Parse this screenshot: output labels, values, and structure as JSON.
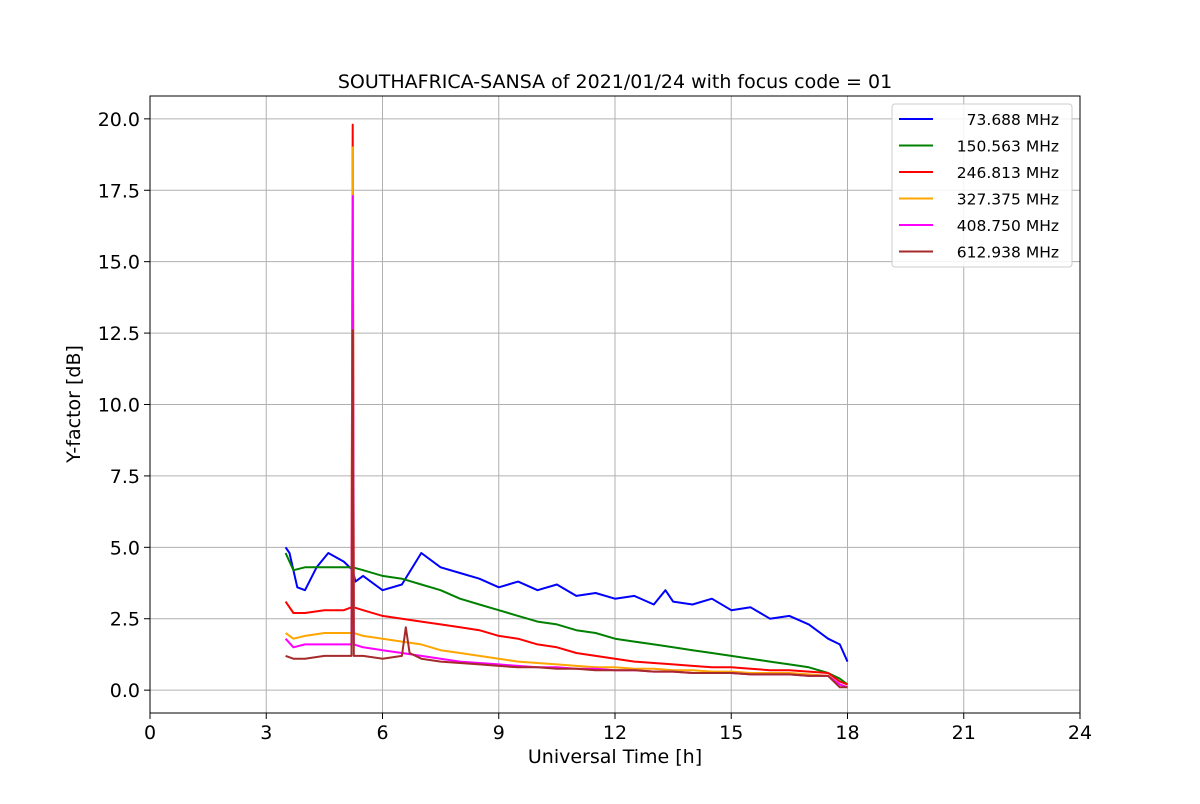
{
  "chart_data": {
    "type": "line",
    "title": "SOUTHAFRICA-SANSA of 2021/01/24 with focus code = 01",
    "xlabel": "Universal Time [h]",
    "ylabel": "Y-factor [dB]",
    "xlim": [
      0,
      24
    ],
    "ylim": [
      -0.8,
      20.8
    ],
    "xticks": [
      0,
      3,
      6,
      9,
      12,
      15,
      18,
      21,
      24
    ],
    "xtick_labels": [
      "0",
      "3",
      "6",
      "9",
      "12",
      "15",
      "18",
      "21",
      "24"
    ],
    "yticks": [
      0,
      2.5,
      5,
      7.5,
      10,
      12.5,
      15,
      17.5,
      20
    ],
    "ytick_labels": [
      "0.0",
      "2.5",
      "5.0",
      "7.5",
      "10.0",
      "12.5",
      "15.0",
      "17.5",
      "20.0"
    ],
    "grid": true,
    "legend_position": "top-right",
    "series": [
      {
        "name": "73.688 MHz",
        "color": "#0000ff",
        "x": [
          3.5,
          3.6,
          3.8,
          4.0,
          4.3,
          4.6,
          5.0,
          5.23,
          5.3,
          5.5,
          6.0,
          6.5,
          7.0,
          7.5,
          8.0,
          8.5,
          9.0,
          9.5,
          10.0,
          10.5,
          11.0,
          11.5,
          12.0,
          12.5,
          13.0,
          13.3,
          13.5,
          14.0,
          14.5,
          15.0,
          15.5,
          16.0,
          16.5,
          17.0,
          17.5,
          17.8,
          18.0
        ],
        "y": [
          5.0,
          4.8,
          3.6,
          3.5,
          4.3,
          4.8,
          4.5,
          4.2,
          3.8,
          4.0,
          3.5,
          3.7,
          4.8,
          4.3,
          4.1,
          3.9,
          3.6,
          3.8,
          3.5,
          3.7,
          3.3,
          3.4,
          3.2,
          3.3,
          3.0,
          3.5,
          3.1,
          3.0,
          3.2,
          2.8,
          2.9,
          2.5,
          2.6,
          2.3,
          1.8,
          1.6,
          1.0
        ]
      },
      {
        "name": "150.563 MHz",
        "color": "#008000",
        "x": [
          3.5,
          3.7,
          4.0,
          4.5,
          5.0,
          5.23,
          5.5,
          6.0,
          6.5,
          7.0,
          7.5,
          8.0,
          8.5,
          9.0,
          9.5,
          10.0,
          10.5,
          11.0,
          11.5,
          12.0,
          12.5,
          13.0,
          13.5,
          14.0,
          14.5,
          15.0,
          15.5,
          16.0,
          16.5,
          17.0,
          17.5,
          17.8,
          18.0
        ],
        "y": [
          4.8,
          4.2,
          4.3,
          4.3,
          4.3,
          4.3,
          4.2,
          4.0,
          3.9,
          3.7,
          3.5,
          3.2,
          3.0,
          2.8,
          2.6,
          2.4,
          2.3,
          2.1,
          2.0,
          1.8,
          1.7,
          1.6,
          1.5,
          1.4,
          1.3,
          1.2,
          1.1,
          1.0,
          0.9,
          0.8,
          0.6,
          0.4,
          0.2
        ]
      },
      {
        "name": "246.813 MHz",
        "color": "#ff0000",
        "x": [
          3.5,
          3.7,
          4.0,
          4.5,
          5.0,
          5.2,
          5.23,
          5.26,
          5.5,
          6.0,
          6.5,
          7.0,
          7.5,
          8.0,
          8.5,
          9.0,
          9.5,
          10.0,
          10.5,
          11.0,
          11.5,
          12.0,
          12.5,
          13.0,
          13.5,
          14.0,
          14.5,
          15.0,
          15.5,
          16.0,
          16.5,
          17.0,
          17.5,
          17.8,
          18.0
        ],
        "y": [
          3.1,
          2.7,
          2.7,
          2.8,
          2.8,
          2.9,
          19.8,
          2.9,
          2.8,
          2.6,
          2.5,
          2.4,
          2.3,
          2.2,
          2.1,
          1.9,
          1.8,
          1.6,
          1.5,
          1.3,
          1.2,
          1.1,
          1.0,
          0.95,
          0.9,
          0.85,
          0.8,
          0.8,
          0.75,
          0.7,
          0.7,
          0.65,
          0.6,
          0.3,
          0.2
        ]
      },
      {
        "name": "327.375 MHz",
        "color": "#ffa500",
        "x": [
          3.5,
          3.7,
          4.0,
          4.5,
          5.0,
          5.2,
          5.23,
          5.26,
          5.5,
          6.0,
          6.5,
          7.0,
          7.5,
          8.0,
          8.5,
          9.0,
          9.5,
          10.0,
          10.5,
          11.0,
          11.5,
          12.0,
          12.5,
          13.0,
          13.5,
          14.0,
          14.5,
          15.0,
          15.5,
          16.0,
          16.5,
          17.0,
          17.5,
          17.8,
          18.0
        ],
        "y": [
          2.0,
          1.8,
          1.9,
          2.0,
          2.0,
          2.0,
          19.0,
          2.0,
          1.9,
          1.8,
          1.7,
          1.6,
          1.4,
          1.3,
          1.2,
          1.1,
          1.0,
          0.95,
          0.9,
          0.85,
          0.8,
          0.8,
          0.75,
          0.75,
          0.7,
          0.7,
          0.65,
          0.65,
          0.6,
          0.6,
          0.6,
          0.55,
          0.5,
          0.2,
          0.1
        ]
      },
      {
        "name": "408.750 MHz",
        "color": "#ff00ff",
        "x": [
          3.5,
          3.7,
          4.0,
          4.5,
          5.0,
          5.2,
          5.23,
          5.26,
          5.5,
          6.0,
          6.5,
          7.0,
          7.5,
          8.0,
          8.5,
          9.0,
          9.5,
          10.0,
          10.5,
          11.0,
          11.5,
          12.0,
          12.5,
          13.0,
          13.5,
          14.0,
          14.5,
          15.0,
          15.5,
          16.0,
          16.5,
          17.0,
          17.5,
          17.8,
          18.0
        ],
        "y": [
          1.8,
          1.5,
          1.6,
          1.6,
          1.6,
          1.6,
          17.3,
          1.6,
          1.5,
          1.4,
          1.3,
          1.2,
          1.1,
          1.0,
          0.95,
          0.9,
          0.85,
          0.8,
          0.8,
          0.75,
          0.75,
          0.7,
          0.7,
          0.65,
          0.65,
          0.6,
          0.6,
          0.6,
          0.55,
          0.55,
          0.55,
          0.5,
          0.5,
          0.2,
          0.1
        ]
      },
      {
        "name": "612.938 MHz",
        "color": "#a52a2a",
        "x": [
          3.5,
          3.7,
          4.0,
          4.5,
          5.0,
          5.2,
          5.23,
          5.26,
          5.5,
          6.0,
          6.5,
          6.6,
          6.7,
          7.0,
          7.5,
          8.0,
          8.5,
          9.0,
          9.5,
          10.0,
          10.5,
          11.0,
          11.5,
          12.0,
          12.5,
          13.0,
          13.5,
          14.0,
          14.5,
          15.0,
          15.5,
          16.0,
          16.5,
          17.0,
          17.5,
          17.8,
          18.0
        ],
        "y": [
          1.2,
          1.1,
          1.1,
          1.2,
          1.2,
          1.2,
          12.6,
          1.2,
          1.2,
          1.1,
          1.2,
          2.2,
          1.3,
          1.1,
          1.0,
          0.95,
          0.9,
          0.85,
          0.8,
          0.8,
          0.75,
          0.75,
          0.7,
          0.7,
          0.7,
          0.65,
          0.65,
          0.6,
          0.6,
          0.6,
          0.55,
          0.55,
          0.55,
          0.5,
          0.5,
          0.1,
          0.1
        ]
      }
    ]
  }
}
